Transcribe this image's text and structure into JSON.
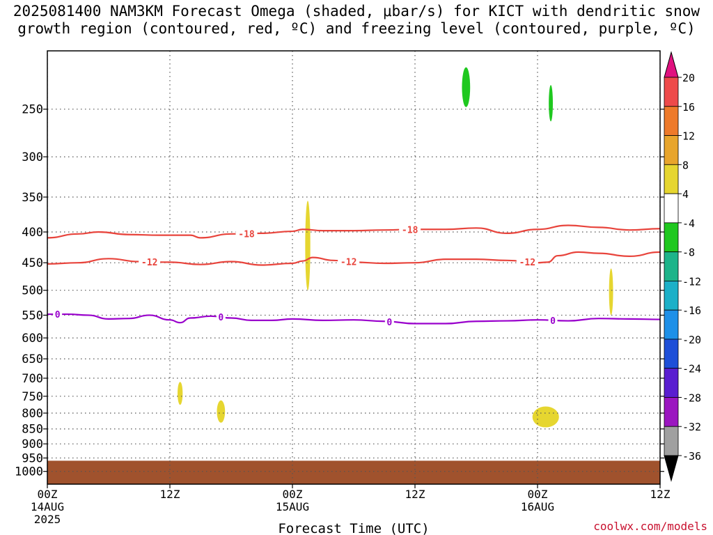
{
  "title": {
    "line1": "2025081400 NAM3KM Forecast Omega (shaded, μbar/s) for KICT with dendritic snow",
    "line2": "growth region (contoured, red, ºC) and freezing level (contoured, purple, ºC)"
  },
  "watermark": "coolwx.com/models",
  "colors": {
    "dgz_contour": "#e8443c",
    "freezing_contour": "#9900cc",
    "ground": "#a0522d",
    "grid": "#555555"
  },
  "chart_data": {
    "type": "contour",
    "xlabel": "Forecast Time (UTC)",
    "x_unit": "hours from 2025-08-14 00Z",
    "xlim": [
      0,
      60
    ],
    "x_ticks": [
      {
        "x": 0,
        "label": "00Z",
        "sub": "14AUG",
        "sub2": "2025"
      },
      {
        "x": 12,
        "label": "12Z",
        "sub": "",
        "sub2": ""
      },
      {
        "x": 24,
        "label": "00Z",
        "sub": "15AUG",
        "sub2": ""
      },
      {
        "x": 36,
        "label": "12Z",
        "sub": "",
        "sub2": ""
      },
      {
        "x": 48,
        "label": "00Z",
        "sub": "16AUG",
        "sub2": ""
      },
      {
        "x": 60,
        "label": "12Z",
        "sub": "",
        "sub2": ""
      }
    ],
    "y_unit": "hPa",
    "y_scale": "log",
    "ylim": [
      1050,
      200
    ],
    "y_ticks": [
      250,
      300,
      350,
      400,
      450,
      500,
      550,
      600,
      650,
      700,
      750,
      800,
      850,
      900,
      950,
      1000
    ],
    "ground_top_hPa": 960,
    "contours": [
      {
        "name": "-18",
        "color": "dgz_contour",
        "x": [
          0,
          3,
          5,
          8,
          11,
          14,
          15,
          18,
          21,
          24,
          25,
          27,
          30,
          33,
          36,
          39,
          42,
          45,
          48,
          51,
          54,
          57,
          60
        ],
        "p": [
          409,
          403,
          400,
          404,
          405,
          405,
          409,
          403,
          402,
          399,
          396,
          398,
          398,
          397,
          396,
          396,
          394,
          402,
          396,
          390,
          393,
          397,
          395
        ],
        "labels": [
          {
            "x": 19.5,
            "text": "-18"
          },
          {
            "x": 35.5,
            "text": "-18"
          }
        ]
      },
      {
        "name": "-12",
        "color": "dgz_contour",
        "x": [
          0,
          3,
          6,
          9,
          12,
          15,
          18,
          21,
          24,
          25,
          26,
          28,
          30,
          33,
          36,
          39,
          42,
          45,
          48,
          49,
          50,
          52,
          54,
          57,
          60
        ],
        "p": [
          452,
          450,
          443,
          448,
          449,
          453,
          448,
          454,
          451,
          447,
          441,
          446,
          449,
          451,
          450,
          444,
          444,
          446,
          450,
          449,
          438,
          432,
          434,
          439,
          432
        ],
        "labels": [
          {
            "x": 10,
            "text": "-12"
          },
          {
            "x": 29.5,
            "text": "-12"
          },
          {
            "x": 47,
            "text": "-12"
          }
        ]
      },
      {
        "name": "0",
        "color": "freezing_contour",
        "x": [
          0,
          2,
          4,
          6,
          8,
          10,
          12,
          13,
          14,
          16,
          18,
          20,
          22,
          24,
          27,
          30,
          33,
          36,
          39,
          42,
          45,
          48,
          51,
          54,
          57,
          60
        ],
        "p": [
          548,
          548,
          550,
          558,
          557,
          550,
          560,
          566,
          556,
          552,
          556,
          561,
          561,
          558,
          561,
          560,
          563,
          568,
          568,
          563,
          562,
          560,
          562,
          557,
          558,
          559
        ],
        "labels": [
          {
            "x": 1,
            "text": "0"
          },
          {
            "x": 17,
            "text": "0"
          },
          {
            "x": 33.5,
            "text": "0"
          },
          {
            "x": 49.5,
            "text": "0"
          }
        ]
      }
    ],
    "omega_blobs": [
      {
        "x": 25.5,
        "x_halfwidth": 0.25,
        "p_top": 355,
        "p_bottom": 500,
        "value_range": "4 to 8"
      },
      {
        "x": 41.0,
        "x_halfwidth": 0.4,
        "p_top": 213,
        "p_bottom": 248,
        "value_range": "-8 to -4"
      },
      {
        "x": 49.3,
        "x_halfwidth": 0.2,
        "p_top": 228,
        "p_bottom": 262,
        "value_range": "-8 to -4"
      },
      {
        "x": 55.2,
        "x_halfwidth": 0.2,
        "p_top": 460,
        "p_bottom": 550,
        "value_range": "4 to 8"
      },
      {
        "x": 13.0,
        "x_halfwidth": 0.25,
        "p_top": 710,
        "p_bottom": 775,
        "value_range": "4 to 8"
      },
      {
        "x": 17.0,
        "x_halfwidth": 0.4,
        "p_top": 762,
        "p_bottom": 830,
        "value_range": "4 to 8"
      },
      {
        "x": 48.8,
        "x_halfwidth": 1.3,
        "p_top": 780,
        "p_bottom": 845,
        "value_range": "4 to 8"
      }
    ],
    "colorbar": {
      "unit": "μbar/s",
      "labels": [
        "20",
        "16",
        "12",
        "8",
        "4",
        "-4",
        "-8",
        "-12",
        "-16",
        "-20",
        "-24",
        "-28",
        "-32",
        "-36"
      ],
      "colors": [
        "#e0117f",
        "#ee4a4a",
        "#ee7a2a",
        "#e8a52c",
        "#e6d630",
        "#ffffff",
        "#1fc81f",
        "#1db48a",
        "#1cb0c8",
        "#1e90e8",
        "#1e4fd8",
        "#5a1ed0",
        "#9b16c0",
        "#a0a0a0",
        "#000000"
      ]
    }
  }
}
